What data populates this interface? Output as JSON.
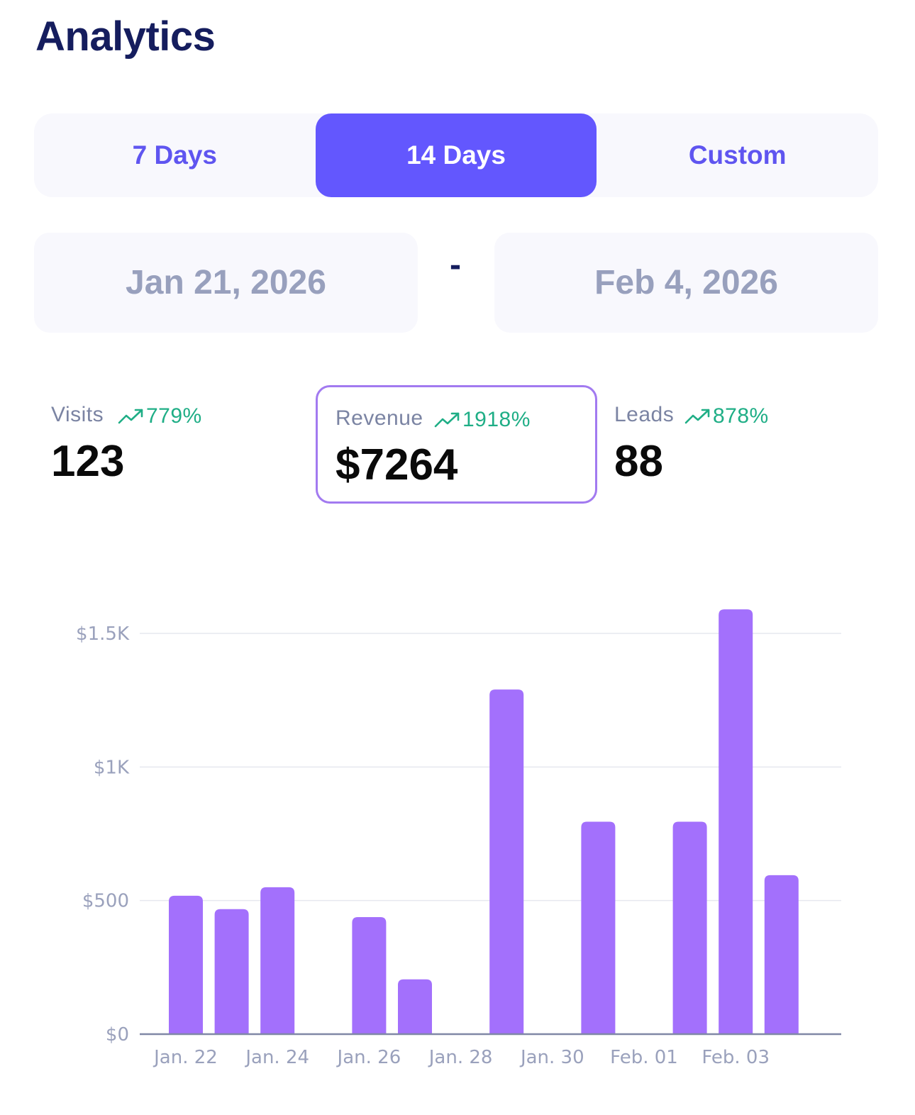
{
  "header": {
    "title": "Analytics"
  },
  "range_tabs": [
    {
      "label": "7 Days",
      "active": false
    },
    {
      "label": "14 Days",
      "active": true
    },
    {
      "label": "Custom",
      "active": false
    }
  ],
  "date_range": {
    "start": "Jan 21, 2026",
    "separator": "-",
    "end": "Feb 4, 2026"
  },
  "stats": {
    "visits": {
      "label": "Visits",
      "change": "779%",
      "value": "123",
      "selected": false
    },
    "revenue": {
      "label": "Revenue",
      "change": "1918%",
      "value": "$7264",
      "selected": true
    },
    "leads": {
      "label": "Leads",
      "change": "878%",
      "value": "88",
      "selected": false
    }
  },
  "colors": {
    "title": "#151d5e",
    "accent": "#6357fe",
    "bar": "#a370fc",
    "positive": "#1fae86",
    "muted": "#98a0bd"
  },
  "icons": {
    "trend": "trending-up-icon"
  },
  "chart_data": {
    "type": "bar",
    "categories": [
      "Jan. 22",
      "Jan. 23",
      "Jan. 24",
      "Jan. 25",
      "Jan. 26",
      "Jan. 27",
      "Jan. 28",
      "Jan. 29",
      "Jan. 30",
      "Jan. 31",
      "Feb. 01",
      "Feb. 02",
      "Feb. 03",
      "Feb. 04"
    ],
    "values": [
      518,
      468,
      550,
      0,
      438,
      205,
      0,
      1290,
      0,
      795,
      0,
      795,
      1590,
      595
    ],
    "x_tick_labels": [
      "Jan. 22",
      "Jan. 24",
      "Jan. 26",
      "Jan. 28",
      "Jan. 30",
      "Feb. 01",
      "Feb. 03"
    ],
    "y_ticks": [
      {
        "value": 0,
        "label": "$0"
      },
      {
        "value": 500,
        "label": "$500"
      },
      {
        "value": 1000,
        "label": "$1K"
      },
      {
        "value": 1500,
        "label": "$1.5K"
      }
    ],
    "ylim": [
      0,
      1500
    ],
    "grid": true,
    "title": "",
    "xlabel": "",
    "ylabel": ""
  }
}
